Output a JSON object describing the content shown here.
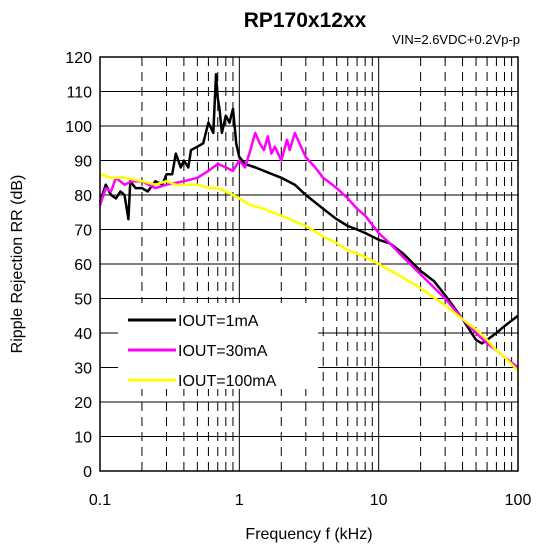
{
  "chart_data": {
    "type": "line",
    "title": "RP170x12xx",
    "subtitle": "VIN=2.6VDC+0.2Vp-p",
    "xlabel": "Frequency f (kHz)",
    "ylabel": "Ripple Rejection RR (dB)",
    "xscale": "log",
    "xlim": [
      0.1,
      100
    ],
    "ylim": [
      0,
      120
    ],
    "xticks": [
      "0.1",
      "1",
      "10",
      "100"
    ],
    "yticks": [
      "0",
      "10",
      "20",
      "30",
      "40",
      "50",
      "60",
      "70",
      "80",
      "90",
      "100",
      "110",
      "120"
    ],
    "grid": true,
    "legend_position": "center-left",
    "series": [
      {
        "name": "IOUT=1mA",
        "color": "#000000",
        "points": [
          [
            0.1,
            78
          ],
          [
            0.11,
            83
          ],
          [
            0.12,
            80
          ],
          [
            0.13,
            79
          ],
          [
            0.14,
            81
          ],
          [
            0.15,
            80
          ],
          [
            0.16,
            73
          ],
          [
            0.165,
            84
          ],
          [
            0.18,
            82
          ],
          [
            0.2,
            82
          ],
          [
            0.22,
            81
          ],
          [
            0.25,
            84
          ],
          [
            0.28,
            83
          ],
          [
            0.3,
            86
          ],
          [
            0.33,
            86
          ],
          [
            0.35,
            92
          ],
          [
            0.38,
            88
          ],
          [
            0.4,
            90
          ],
          [
            0.43,
            88
          ],
          [
            0.45,
            93
          ],
          [
            0.5,
            94
          ],
          [
            0.55,
            95
          ],
          [
            0.6,
            101
          ],
          [
            0.65,
            98
          ],
          [
            0.68,
            115
          ],
          [
            0.7,
            108
          ],
          [
            0.72,
            105
          ],
          [
            0.75,
            98
          ],
          [
            0.8,
            103
          ],
          [
            0.85,
            101
          ],
          [
            0.9,
            105
          ],
          [
            0.95,
            95
          ],
          [
            1.0,
            91
          ],
          [
            1.1,
            89
          ],
          [
            1.3,
            88
          ],
          [
            1.5,
            87
          ],
          [
            2,
            85
          ],
          [
            2.5,
            83
          ],
          [
            3,
            80
          ],
          [
            4,
            76
          ],
          [
            5,
            73
          ],
          [
            6,
            71
          ],
          [
            7,
            70
          ],
          [
            8,
            69
          ],
          [
            10,
            67
          ],
          [
            12,
            66
          ],
          [
            15,
            63
          ],
          [
            20,
            58
          ],
          [
            25,
            55
          ],
          [
            30,
            51
          ],
          [
            40,
            44
          ],
          [
            50,
            38
          ],
          [
            55,
            37
          ],
          [
            60,
            38
          ],
          [
            70,
            40
          ],
          [
            80,
            42
          ],
          [
            100,
            45
          ]
        ]
      },
      {
        "name": "IOUT=30mA",
        "color": "#ff00ff",
        "points": [
          [
            0.1,
            77
          ],
          [
            0.11,
            82
          ],
          [
            0.12,
            81
          ],
          [
            0.13,
            85
          ],
          [
            0.15,
            83
          ],
          [
            0.17,
            84
          ],
          [
            0.2,
            84
          ],
          [
            0.25,
            82
          ],
          [
            0.3,
            83
          ],
          [
            0.4,
            84
          ],
          [
            0.5,
            85
          ],
          [
            0.6,
            87
          ],
          [
            0.7,
            89
          ],
          [
            0.8,
            88
          ],
          [
            0.9,
            87
          ],
          [
            1.0,
            90
          ],
          [
            1.1,
            88
          ],
          [
            1.2,
            93
          ],
          [
            1.3,
            98
          ],
          [
            1.4,
            95
          ],
          [
            1.5,
            93
          ],
          [
            1.6,
            97
          ],
          [
            1.7,
            92
          ],
          [
            1.8,
            94
          ],
          [
            2,
            90
          ],
          [
            2.2,
            96
          ],
          [
            2.3,
            93
          ],
          [
            2.5,
            98
          ],
          [
            2.7,
            95
          ],
          [
            3,
            91
          ],
          [
            3.5,
            88
          ],
          [
            4,
            85
          ],
          [
            5,
            82
          ],
          [
            6,
            79
          ],
          [
            7,
            76
          ],
          [
            8,
            74
          ],
          [
            10,
            69
          ],
          [
            12,
            66
          ],
          [
            15,
            62
          ],
          [
            20,
            57
          ],
          [
            30,
            50
          ],
          [
            40,
            44
          ],
          [
            50,
            40
          ],
          [
            60,
            37
          ],
          [
            70,
            35
          ],
          [
            80,
            33
          ],
          [
            100,
            30
          ]
        ]
      },
      {
        "name": "IOUT=100mA",
        "color": "#ffff00",
        "points": [
          [
            0.1,
            86
          ],
          [
            0.12,
            85
          ],
          [
            0.15,
            85
          ],
          [
            0.2,
            84
          ],
          [
            0.25,
            83
          ],
          [
            0.3,
            84
          ],
          [
            0.35,
            83
          ],
          [
            0.4,
            83
          ],
          [
            0.5,
            83
          ],
          [
            0.6,
            82
          ],
          [
            0.7,
            82
          ],
          [
            0.8,
            81
          ],
          [
            0.9,
            80
          ],
          [
            1.0,
            79
          ],
          [
            1.2,
            77
          ],
          [
            1.5,
            76
          ],
          [
            2,
            74
          ],
          [
            3,
            71
          ],
          [
            4,
            68
          ],
          [
            5,
            66
          ],
          [
            6,
            64
          ],
          [
            7,
            63
          ],
          [
            8,
            62
          ],
          [
            10,
            60
          ],
          [
            15,
            56
          ],
          [
            20,
            53
          ],
          [
            30,
            48
          ],
          [
            40,
            44
          ],
          [
            50,
            41
          ],
          [
            60,
            38
          ],
          [
            70,
            35
          ],
          [
            80,
            33
          ],
          [
            100,
            29
          ]
        ]
      }
    ]
  }
}
